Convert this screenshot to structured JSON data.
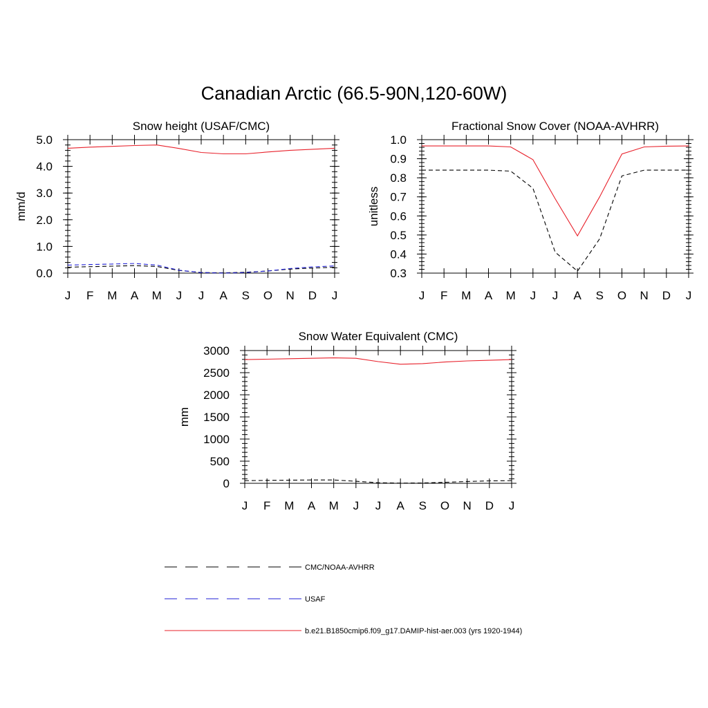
{
  "title": "Canadian Arctic (66.5-90N,120-60W)",
  "months": [
    "J",
    "F",
    "M",
    "A",
    "M",
    "J",
    "J",
    "A",
    "S",
    "O",
    "N",
    "D",
    "J"
  ],
  "colors": {
    "model": "#e8202a",
    "obs": "#000000",
    "usaf": "#1f1fd6"
  },
  "legend": [
    {
      "label": "CMC/NOAA-AVHRR",
      "style": "dashed",
      "color": "#000000"
    },
    {
      "label": "USAF",
      "style": "dashed",
      "color": "#1f1fd6"
    },
    {
      "label": "b.e21.B1850cmip6.f09_g17.DAMIP-hist-aer.003 (yrs 1920-1944)",
      "style": "solid",
      "color": "#e8202a"
    }
  ],
  "chart_data": [
    {
      "type": "line",
      "title": "Snow height (USAF/CMC)",
      "ylabel": "mm/d",
      "ylim": [
        0,
        5
      ],
      "yticks": [
        "0.0",
        "1.0",
        "2.0",
        "3.0",
        "4.0",
        "5.0"
      ],
      "ytick_values": [
        0,
        1,
        2,
        3,
        4,
        5
      ],
      "yminor_step": 0.2,
      "series": [
        {
          "name": "b.e21.B1850cmip6.f09_g17.DAMIP-hist-aer.003 (yrs 1920-1944)",
          "style": "solid",
          "color": "#e8202a",
          "values": [
            4.68,
            4.72,
            4.75,
            4.78,
            4.8,
            4.67,
            4.52,
            4.47,
            4.47,
            4.54,
            4.6,
            4.64,
            4.68
          ]
        },
        {
          "name": "CMC/NOAA-AVHRR",
          "style": "dashed",
          "color": "#000000",
          "values": [
            0.22,
            0.24,
            0.26,
            0.28,
            0.25,
            0.1,
            0.02,
            0.01,
            0.03,
            0.08,
            0.15,
            0.19,
            0.22
          ]
        },
        {
          "name": "USAF",
          "style": "dashed",
          "color": "#1f1fd6",
          "values": [
            0.3,
            0.32,
            0.34,
            0.36,
            0.3,
            0.11,
            0.02,
            0.0,
            0.02,
            0.08,
            0.17,
            0.23,
            0.27
          ]
        }
      ]
    },
    {
      "type": "line",
      "title": "Fractional Snow Cover (NOAA-AVHRR)",
      "ylabel": "unitless",
      "ylim": [
        0.3,
        1.0
      ],
      "yticks": [
        "0.3",
        "0.4",
        "0.5",
        "0.6",
        "0.7",
        "0.8",
        "0.9",
        "1.0"
      ],
      "ytick_values": [
        0.3,
        0.4,
        0.5,
        0.6,
        0.7,
        0.8,
        0.9,
        1.0
      ],
      "yminor_step": 0.02,
      "series": [
        {
          "name": "b.e21.B1850cmip6.f09_g17.DAMIP-hist-aer.003 (yrs 1920-1944)",
          "style": "solid",
          "color": "#e8202a",
          "values": [
            0.967,
            0.967,
            0.967,
            0.967,
            0.962,
            0.895,
            0.69,
            0.495,
            0.7,
            0.925,
            0.962,
            0.966,
            0.967
          ]
        },
        {
          "name": "CMC/NOAA-AVHRR",
          "style": "dashed",
          "color": "#000000",
          "values": [
            0.84,
            0.84,
            0.84,
            0.84,
            0.835,
            0.745,
            0.41,
            0.31,
            0.48,
            0.81,
            0.84,
            0.84,
            0.84
          ]
        }
      ]
    },
    {
      "type": "line",
      "title": "Snow Water Equivalent (CMC)",
      "ylabel": "mm",
      "ylim": [
        0,
        3000
      ],
      "yticks": [
        "0",
        "500",
        "1000",
        "1500",
        "2000",
        "2500",
        "3000"
      ],
      "ytick_values": [
        0,
        500,
        1000,
        1500,
        2000,
        2500,
        3000
      ],
      "yminor_step": 100,
      "series": [
        {
          "name": "b.e21.B1850cmip6.f09_g17.DAMIP-hist-aer.003 (yrs 1920-1944)",
          "style": "solid",
          "color": "#e8202a",
          "values": [
            2795,
            2805,
            2815,
            2825,
            2835,
            2825,
            2750,
            2690,
            2705,
            2740,
            2765,
            2780,
            2795
          ]
        },
        {
          "name": "CMC/NOAA-AVHRR",
          "style": "dashed",
          "color": "#000000",
          "values": [
            60,
            65,
            70,
            75,
            75,
            45,
            12,
            5,
            8,
            22,
            40,
            55,
            60
          ]
        }
      ]
    }
  ]
}
